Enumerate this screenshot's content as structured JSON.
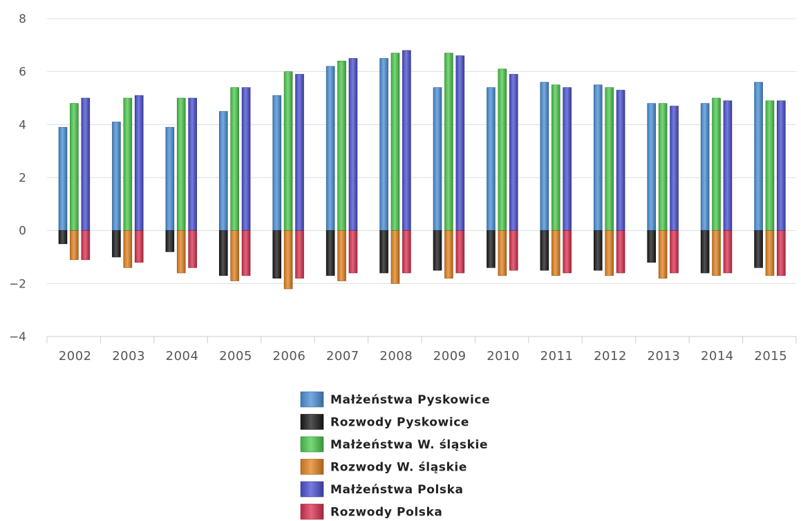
{
  "chart_data": {
    "type": "bar",
    "categories": [
      "2002",
      "2003",
      "2004",
      "2005",
      "2006",
      "2007",
      "2008",
      "2009",
      "2010",
      "2011",
      "2012",
      "2013",
      "2014",
      "2015"
    ],
    "series": [
      {
        "name": "Małżeństwa Pyskowice",
        "color": "#4a8fd6",
        "values": [
          3.9,
          4.1,
          3.9,
          4.5,
          5.1,
          6.2,
          6.5,
          5.4,
          5.4,
          5.6,
          5.5,
          4.8,
          4.8,
          5.6
        ]
      },
      {
        "name": "Rozwody Pyskowice",
        "color": "#1a1a1a",
        "values": [
          -0.5,
          -1.0,
          -0.8,
          -1.7,
          -1.8,
          -1.7,
          -1.6,
          -1.5,
          -1.4,
          -1.5,
          -1.5,
          -1.2,
          -1.6,
          -1.4
        ]
      },
      {
        "name": "Małżeństwa W. śląskie",
        "color": "#4cc94c",
        "values": [
          4.8,
          5.0,
          5.0,
          5.4,
          6.0,
          6.4,
          6.7,
          6.7,
          6.1,
          5.5,
          5.4,
          4.8,
          5.0,
          4.9
        ]
      },
      {
        "name": "Rozwody W. śląskie",
        "color": "#e2821f",
        "values": [
          -1.1,
          -1.4,
          -1.6,
          -1.9,
          -2.2,
          -1.9,
          -2.0,
          -1.8,
          -1.7,
          -1.7,
          -1.7,
          -1.8,
          -1.7,
          -1.7
        ]
      },
      {
        "name": "Małżeństwa Polska",
        "color": "#4a50d0",
        "values": [
          5.0,
          5.1,
          5.0,
          5.4,
          5.9,
          6.5,
          6.8,
          6.6,
          5.9,
          5.4,
          5.3,
          4.7,
          4.9,
          4.9
        ]
      },
      {
        "name": "Rozwody Polska",
        "color": "#d9304f",
        "values": [
          -1.1,
          -1.2,
          -1.4,
          -1.7,
          -1.8,
          -1.6,
          -1.6,
          -1.6,
          -1.5,
          -1.6,
          -1.6,
          -1.6,
          -1.6,
          -1.7
        ]
      }
    ],
    "yticks": [
      "8",
      "6",
      "4",
      "2",
      "0",
      "−2",
      "−4"
    ],
    "ylim": [
      -4,
      8
    ],
    "grid": true,
    "legend_position": "bottom-center"
  }
}
